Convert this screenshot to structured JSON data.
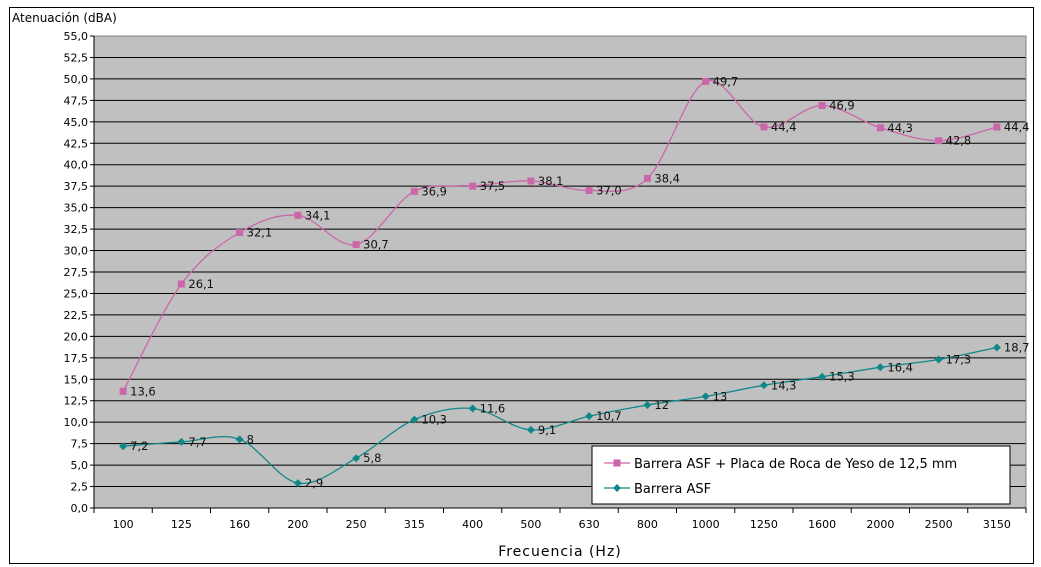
{
  "chart_data": {
    "type": "line",
    "xlabel": "Frecuencia (Hz)",
    "ylabel": "Atenuación (dBA)",
    "ylim": [
      0,
      55
    ],
    "ytick_step": 2.5,
    "yticks": [
      "0,0",
      "2,5",
      "5,0",
      "7,5",
      "10,0",
      "12,5",
      "15,0",
      "17,5",
      "20,0",
      "22,5",
      "25,0",
      "27,5",
      "30,0",
      "32,5",
      "35,0",
      "37,5",
      "40,0",
      "42,5",
      "45,0",
      "47,5",
      "50,0",
      "52,5",
      "55,0"
    ],
    "categories": [
      "100",
      "125",
      "160",
      "200",
      "250",
      "315",
      "400",
      "500",
      "630",
      "800",
      "1000",
      "1250",
      "1600",
      "2000",
      "2500",
      "3150"
    ],
    "grid": true,
    "legend_position": "bottom-right",
    "series": [
      {
        "name": "Barrera ASF + Placa de Roca de Yeso de 12,5 mm",
        "color": "#cc66aa",
        "marker": "square",
        "values": [
          13.6,
          26.1,
          32.1,
          34.1,
          30.7,
          36.9,
          37.5,
          38.1,
          37.0,
          38.4,
          49.7,
          44.4,
          46.9,
          44.3,
          42.8,
          44.4
        ],
        "labels": [
          "13,6",
          "26,1",
          "32,1",
          "34,1",
          "30,7",
          "36,9",
          "37,5",
          "38,1",
          "37,0",
          "38,4",
          "49,7",
          "44,4",
          "46,9",
          "44,3",
          "42,8",
          "44,4"
        ]
      },
      {
        "name": "Barrera ASF",
        "color": "#118888",
        "marker": "diamond",
        "values": [
          7.2,
          7.7,
          8,
          2.9,
          5.8,
          10.3,
          11.6,
          9.1,
          10.7,
          12,
          13,
          14.3,
          15.3,
          16.4,
          17.3,
          18.7
        ],
        "labels": [
          "7,2",
          "7,7",
          "8",
          "2,9",
          "5,8",
          "10,3",
          "11,6",
          "9,1",
          "10,7",
          "12",
          "13",
          "14,3",
          "15,3",
          "16,4",
          "17,3",
          "18,7"
        ]
      }
    ]
  }
}
